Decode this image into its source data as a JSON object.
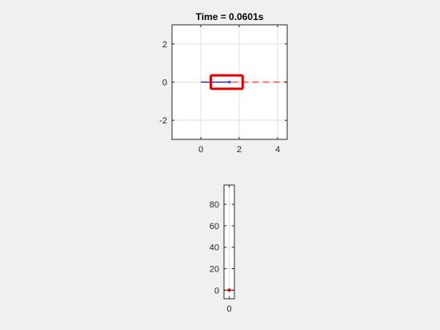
{
  "figure": {
    "background": "#f0f0f0"
  },
  "chart_data": [
    {
      "type": "line",
      "title": "Time = 0.0601s",
      "xlabel": "",
      "ylabel": "",
      "xlim": [
        -1.5,
        4.5
      ],
      "ylim": [
        -3,
        3
      ],
      "xticks": [
        0,
        2,
        4
      ],
      "yticks": [
        -2,
        0,
        2
      ],
      "grid": true,
      "elements": {
        "vehicle_box": {
          "x_range": [
            0.52,
            2.18
          ],
          "y_range": [
            -0.35,
            0.35
          ],
          "color": "#e00000"
        },
        "trajectory": {
          "x": [
            0.0,
            1.5
          ],
          "y": [
            0.0,
            0.0
          ],
          "color": "#0000ff"
        },
        "reference_path": {
          "x": [
            1.6,
            4.5
          ],
          "y": [
            0.0,
            0.0
          ],
          "color": "#ff6060",
          "style": "dashed"
        },
        "position_marker": {
          "x": 1.5,
          "y": 0.0,
          "color": "#4444cc"
        }
      }
    },
    {
      "type": "bar",
      "title": "",
      "xlabel": "",
      "ylabel": "",
      "xlim": [
        -0.5,
        0.5
      ],
      "ylim": [
        -8,
        98
      ],
      "xticks": [
        0
      ],
      "yticks": [
        0,
        20,
        40,
        60,
        80
      ],
      "grid": true,
      "elements": {
        "value_marker": {
          "x": 0,
          "y": 0,
          "color": "#cc0000"
        }
      }
    }
  ]
}
